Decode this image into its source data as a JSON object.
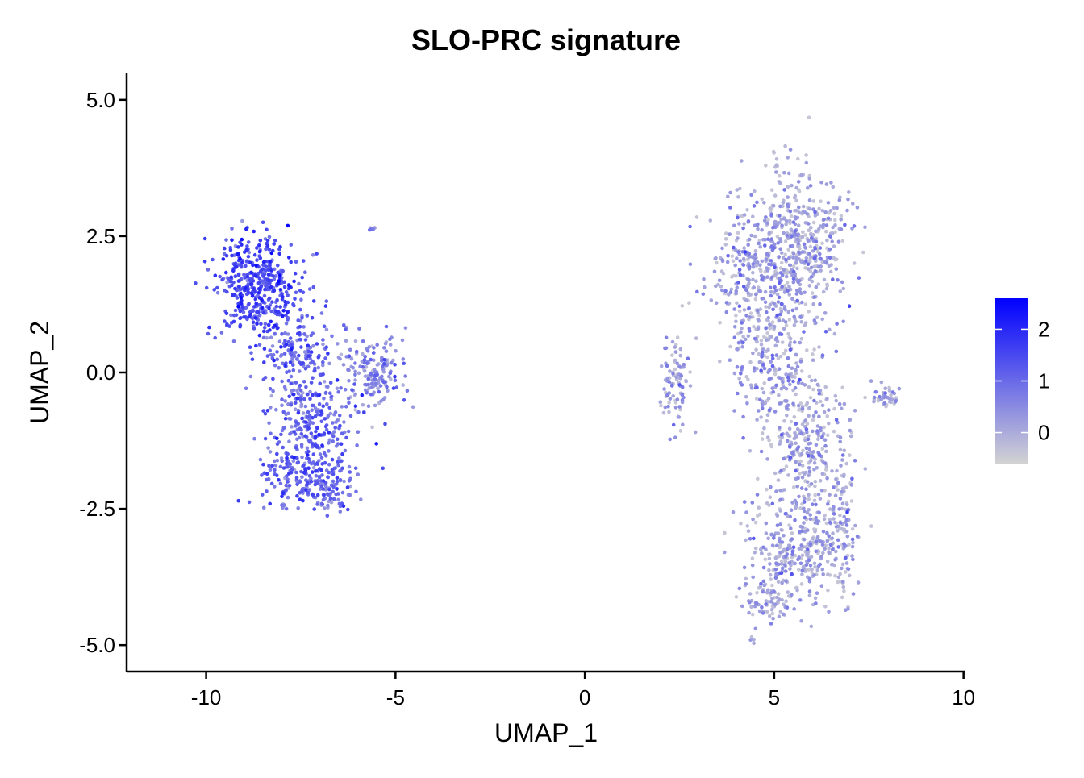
{
  "chart_data": {
    "type": "scatter",
    "title": "SLO-PRC signature",
    "xlabel": "UMAP_1",
    "ylabel": "UMAP_2",
    "xlim": [
      -12.1,
      10.05
    ],
    "ylim": [
      -5.5,
      5.5
    ],
    "x_ticks": [
      -10,
      -5,
      0,
      5,
      10
    ],
    "x_tick_labels": [
      "-10",
      "-5",
      "0",
      "5",
      "10"
    ],
    "y_ticks": [
      5.0,
      2.5,
      0.0,
      -2.5,
      -5.0
    ],
    "y_tick_labels": [
      "5.0",
      "2.5",
      "0.0",
      "-2.5",
      "-5.0"
    ],
    "grid": false,
    "legend": {
      "position": "right",
      "type": "colorbar",
      "range": [
        -0.6,
        2.6
      ],
      "ticks": [
        0,
        1,
        2
      ],
      "tick_labels": [
        "0",
        "1",
        "2"
      ],
      "low_color": "#d3d3d3",
      "high_color": "#0000ff"
    },
    "clusters": [
      {
        "center": [
          -8.7,
          1.6
        ],
        "spread": [
          0.55,
          0.45
        ],
        "n": 420,
        "score_mean": 1.4
      },
      {
        "center": [
          -7.6,
          0.4
        ],
        "spread": [
          0.5,
          0.4
        ],
        "n": 160,
        "score_mean": 1.0
      },
      {
        "center": [
          -7.2,
          -0.9
        ],
        "spread": [
          0.6,
          0.5
        ],
        "n": 260,
        "score_mean": 1.0
      },
      {
        "center": [
          -7.5,
          -1.9
        ],
        "spread": [
          0.6,
          0.35
        ],
        "n": 180,
        "score_mean": 1.1
      },
      {
        "center": [
          -6.6,
          -2.2
        ],
        "spread": [
          0.25,
          0.2
        ],
        "n": 60,
        "score_mean": 0.8
      },
      {
        "center": [
          -5.6,
          0.0
        ],
        "spread": [
          0.45,
          0.35
        ],
        "n": 170,
        "score_mean": 0.5
      },
      {
        "center": [
          -5.65,
          2.62
        ],
        "spread": [
          0.05,
          0.03
        ],
        "n": 8,
        "score_mean": 0.3
      },
      {
        "center": [
          2.4,
          -0.2
        ],
        "spread": [
          0.2,
          0.45
        ],
        "n": 90,
        "score_mean": 0.1
      },
      {
        "center": [
          4.3,
          1.8
        ],
        "spread": [
          0.5,
          0.6
        ],
        "n": 230,
        "score_mean": 0.15
      },
      {
        "center": [
          5.7,
          2.3
        ],
        "spread": [
          0.6,
          0.7
        ],
        "n": 480,
        "score_mean": 0.05
      },
      {
        "center": [
          5.0,
          0.2
        ],
        "spread": [
          0.55,
          0.6
        ],
        "n": 220,
        "score_mean": 0.1
      },
      {
        "center": [
          5.8,
          -1.3
        ],
        "spread": [
          0.6,
          0.7
        ],
        "n": 300,
        "score_mean": 0.05
      },
      {
        "center": [
          5.6,
          -3.3
        ],
        "spread": [
          0.65,
          0.5
        ],
        "n": 330,
        "score_mean": 0.05
      },
      {
        "center": [
          6.8,
          -2.8
        ],
        "spread": [
          0.2,
          0.6
        ],
        "n": 90,
        "score_mean": 0.0
      },
      {
        "center": [
          4.8,
          -4.2
        ],
        "spread": [
          0.3,
          0.15
        ],
        "n": 60,
        "score_mean": 0.0
      },
      {
        "center": [
          7.95,
          -0.45
        ],
        "spread": [
          0.18,
          0.08
        ],
        "n": 40,
        "score_mean": 0.0
      },
      {
        "center": [
          5.0,
          3.9
        ],
        "spread": [
          0.05,
          0.1
        ],
        "n": 6,
        "score_mean": 0.0
      },
      {
        "center": [
          4.4,
          -4.85
        ],
        "spread": [
          0.05,
          0.08
        ],
        "n": 5,
        "score_mean": 0.0
      }
    ]
  }
}
